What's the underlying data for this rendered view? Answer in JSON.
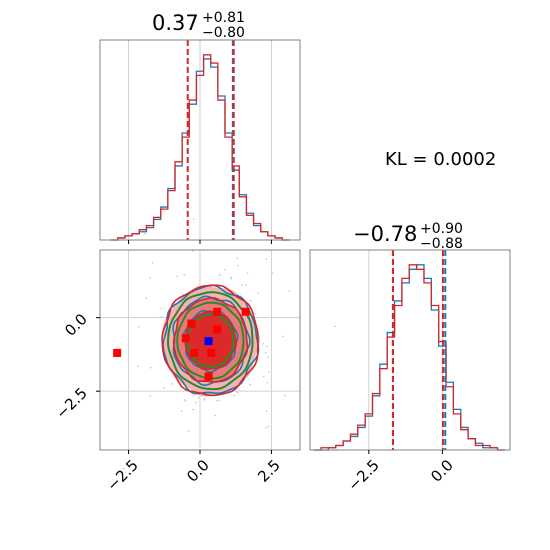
{
  "chart_data": [
    {
      "type": "histogram",
      "panel": "marginal-x",
      "title_main": "0.37",
      "title_plus": "+0.81",
      "title_minus": "−0.80",
      "xlim": [
        -3.5,
        3.5
      ],
      "vlines_red": [
        -0.43,
        1.18
      ],
      "vlines_blue": [
        1.15
      ],
      "series": [
        {
          "color": "#1f77b4",
          "x": [
            -3.0,
            -2.75,
            -2.5,
            -2.25,
            -2.0,
            -1.75,
            -1.5,
            -1.25,
            -1.0,
            -0.75,
            -0.5,
            -0.25,
            0.0,
            0.25,
            0.5,
            0.75,
            1.0,
            1.25,
            1.5,
            1.75,
            2.0,
            2.25,
            2.5,
            2.75,
            3.0
          ],
          "values": [
            0,
            1,
            2,
            3,
            4,
            6,
            10,
            16,
            25,
            36,
            52,
            66,
            82,
            88,
            84,
            70,
            52,
            34,
            22,
            13,
            7,
            4,
            2,
            1,
            0
          ]
        },
        {
          "color": "#d62728",
          "x": [
            -3.0,
            -2.75,
            -2.5,
            -2.25,
            -2.0,
            -1.75,
            -1.5,
            -1.25,
            -1.0,
            -0.75,
            -0.5,
            -0.25,
            0.0,
            0.25,
            0.5,
            0.75,
            1.0,
            1.25,
            1.5,
            1.75,
            2.0,
            2.25,
            2.5,
            2.75,
            3.0
          ],
          "values": [
            0,
            1,
            2,
            3,
            5,
            7,
            11,
            15,
            24,
            38,
            50,
            68,
            80,
            90,
            86,
            68,
            50,
            36,
            21,
            12,
            8,
            4,
            2,
            1,
            0
          ]
        }
      ]
    },
    {
      "type": "contour",
      "panel": "joint",
      "xlim": [
        -3.5,
        3.5
      ],
      "ylim": [
        -4.5,
        2.3
      ],
      "contours_blue": [
        1.15,
        1.65,
        2.05
      ],
      "contours_red": [
        1.1,
        1.6,
        2.1
      ],
      "contours_green": [
        1.0,
        1.45,
        1.85
      ],
      "center": [
        0.37,
        -0.78
      ],
      "std": [
        0.8,
        0.89
      ],
      "points_red": [
        [
          0.6,
          0.2
        ],
        [
          1.6,
          0.2
        ],
        [
          -0.3,
          -0.2
        ],
        [
          0.6,
          -0.4
        ],
        [
          -0.5,
          -0.7
        ],
        [
          0.4,
          -1.2
        ],
        [
          -0.2,
          -1.2
        ],
        [
          0.3,
          -2.0
        ],
        [
          -2.9,
          -1.2
        ]
      ],
      "points_blue": [
        [
          0.3,
          -0.8
        ]
      ]
    },
    {
      "type": "histogram",
      "panel": "marginal-y",
      "title_main": "−0.78",
      "title_plus": "+0.90",
      "title_minus": "−0.88",
      "xlim": [
        -4.5,
        2.3
      ],
      "vlines_red": [
        -1.68,
        0.02
      ],
      "vlines_blue": [
        -1.68,
        0.1
      ],
      "series": [
        {
          "color": "#1f77b4",
          "x": [
            -4.25,
            -4.0,
            -3.75,
            -3.5,
            -3.25,
            -3.0,
            -2.75,
            -2.5,
            -2.25,
            -2.0,
            -1.75,
            -1.5,
            -1.25,
            -1.0,
            -0.75,
            -0.5,
            -0.25,
            0.0,
            0.25,
            0.5,
            0.75,
            1.0,
            1.25,
            1.5,
            1.75,
            2.0
          ],
          "values": [
            0,
            0,
            1,
            2,
            4,
            6,
            10,
            15,
            24,
            38,
            52,
            66,
            74,
            80,
            82,
            76,
            62,
            46,
            30,
            18,
            10,
            5,
            3,
            1,
            1,
            0
          ]
        },
        {
          "color": "#d62728",
          "x": [
            -4.25,
            -4.0,
            -3.75,
            -3.5,
            -3.25,
            -3.0,
            -2.75,
            -2.5,
            -2.25,
            -2.0,
            -1.75,
            -1.5,
            -1.25,
            -1.0,
            -0.75,
            -0.5,
            -0.25,
            0.0,
            0.25,
            0.5,
            0.75,
            1.0,
            1.25,
            1.5,
            1.75,
            2.0
          ],
          "values": [
            0,
            1,
            1,
            2,
            4,
            7,
            11,
            16,
            25,
            36,
            50,
            64,
            76,
            82,
            80,
            74,
            64,
            48,
            28,
            16,
            9,
            5,
            2,
            2,
            1,
            0
          ]
        }
      ]
    }
  ],
  "annotation": "KL = 0.0002",
  "ticks": {
    "x_left": [
      "−2.5",
      "0.0",
      "2.5"
    ],
    "y_left": [
      "0.0",
      "−2.5"
    ],
    "x_right": [
      "−2.5",
      "0.0"
    ]
  }
}
